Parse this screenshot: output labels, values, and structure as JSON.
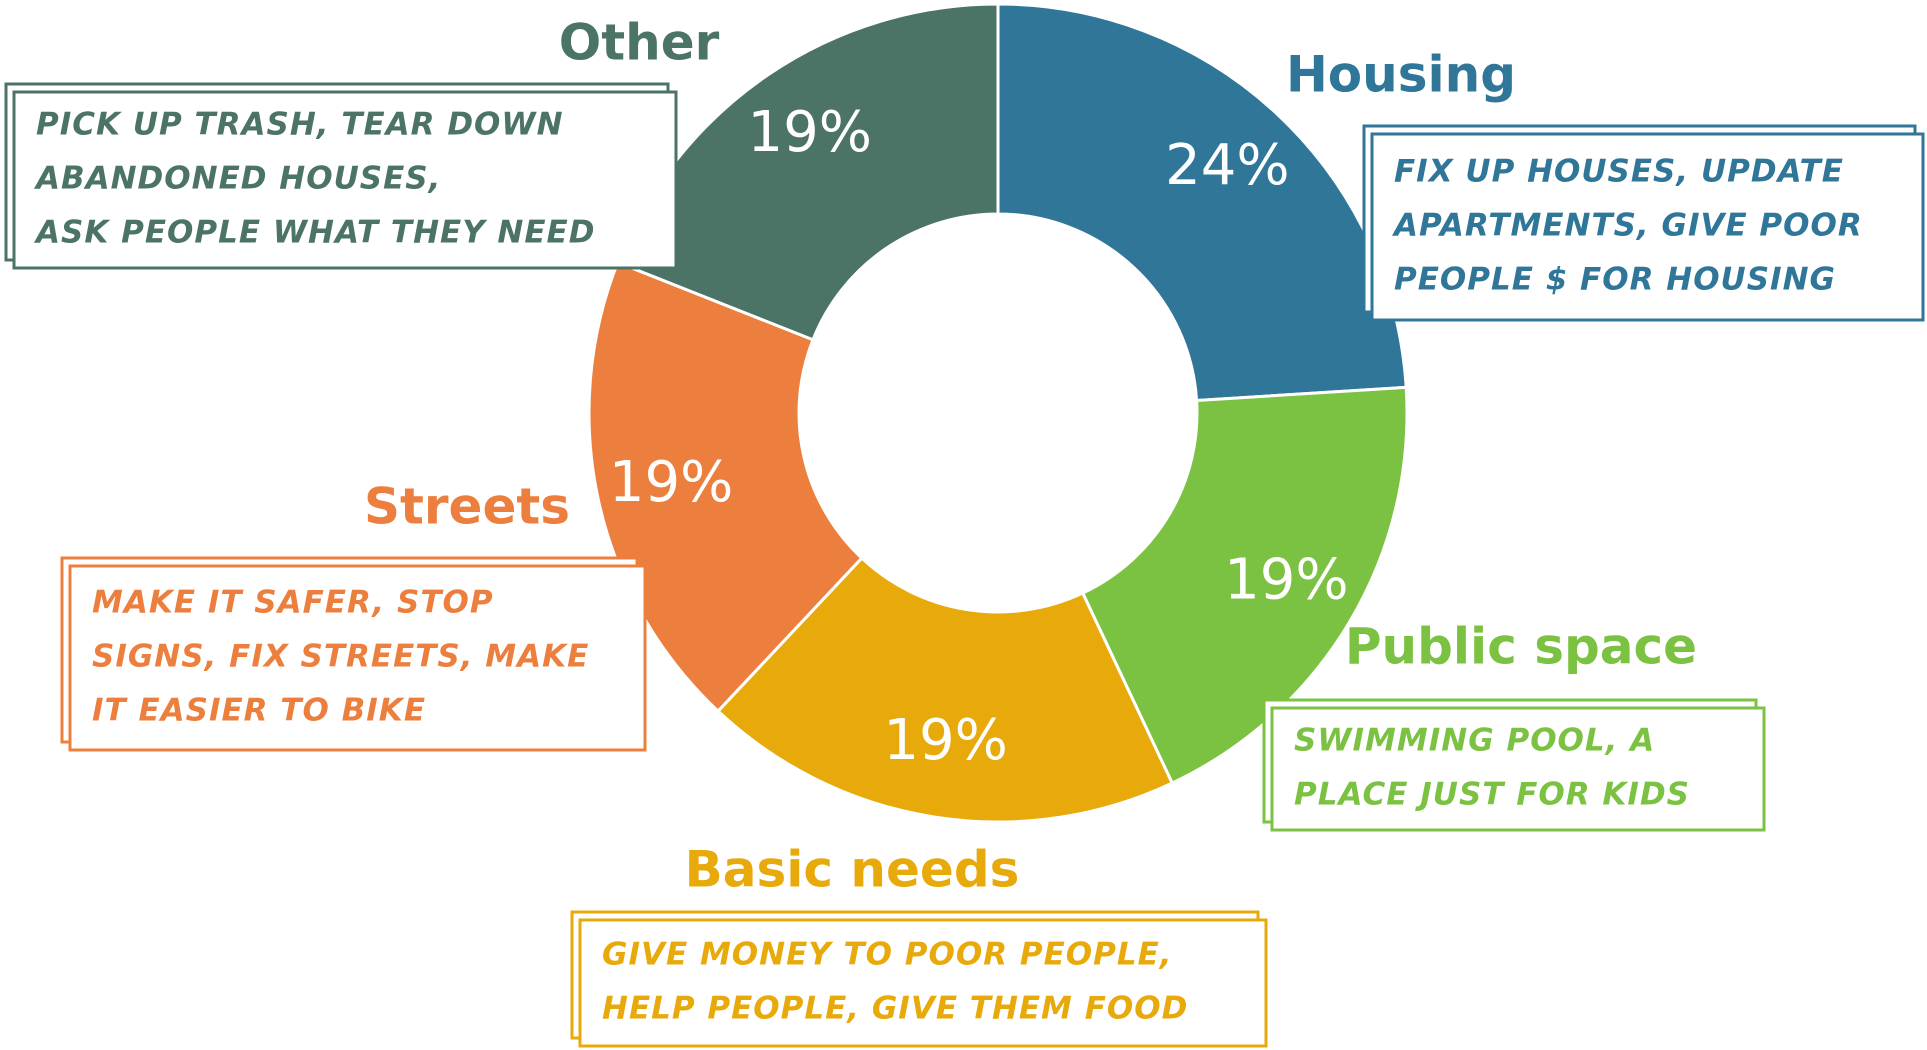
{
  "chart_data": {
    "type": "pie",
    "donut": true,
    "categories": [
      "Housing",
      "Public space",
      "Basic needs",
      "Streets",
      "Other"
    ],
    "values": [
      24,
      19,
      19,
      19,
      19
    ],
    "value_labels": [
      "24%",
      "19%",
      "19%",
      "19%",
      "19%"
    ],
    "colors": [
      "#2f7699",
      "#7cc242",
      "#e8a90b",
      "#ec7f3e",
      "#4b7366"
    ],
    "descriptions": [
      [
        "FIX UP HOUSES, UPDATE",
        "APARTMENTS, GIVE POOR",
        "PEOPLE $ FOR HOUSING"
      ],
      [
        "SWIMMING POOL, A",
        "PLACE JUST FOR KIDS"
      ],
      [
        "GIVE MONEY TO POOR PEOPLE,",
        "HELP PEOPLE, GIVE THEM FOOD"
      ],
      [
        "MAKE IT SAFER, STOP",
        "SIGNS, FIX STREETS, MAKE",
        "IT EASIER TO BIKE"
      ],
      [
        "PICK UP TRASH, TEAR DOWN",
        "ABANDONED HOUSES,",
        "ASK PEOPLE WHAT THEY NEED"
      ]
    ]
  }
}
